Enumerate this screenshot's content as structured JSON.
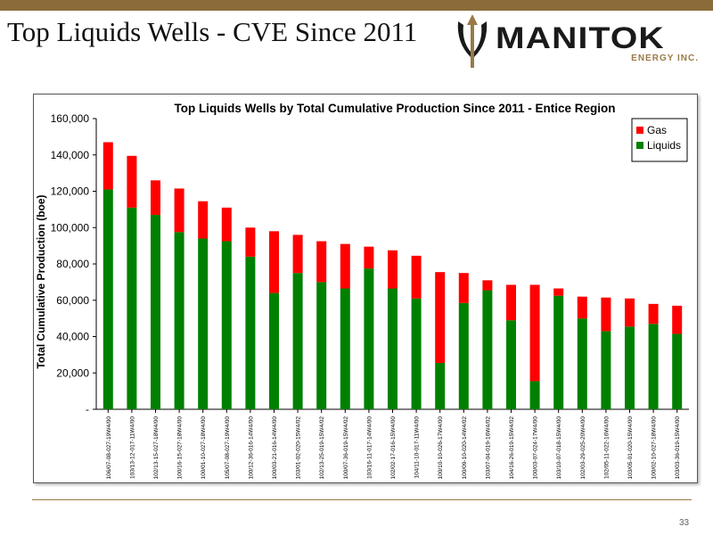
{
  "slide": {
    "title": "Top Liquids Wells - CVE Since 2011",
    "logo_text": "MANITOK",
    "logo_sub": "ENERGY INC.",
    "page_number": "33"
  },
  "colors": {
    "gas": "#FF0000",
    "liquids": "#008000",
    "accent": "#8B6B3A"
  },
  "chart_data": {
    "type": "bar",
    "stacked": true,
    "title": "Top Liquids Wells by Total Cumulative Production Since 2011 - Entice Region",
    "xlabel": "",
    "ylabel": "Total Cumulative Production (boe)",
    "ylim": [
      0,
      160000
    ],
    "yticks": [
      0,
      20000,
      40000,
      60000,
      80000,
      100000,
      120000,
      140000,
      160000
    ],
    "ytick_labels": [
      "-",
      "20,000",
      "40,000",
      "60,000",
      "80,000",
      "100,000",
      "120,000",
      "140,000",
      "160,000"
    ],
    "legend_position": "top-right",
    "categories": [
      "106/07-08-027-19W4/00",
      "103/13-12-017-11W4/00",
      "102/13-15-027-18W4/00",
      "100/16-15-027-18W4/00",
      "100/01-10-027-18W4/00",
      "105/07-08-027-19W4/00",
      "100/12-36-016-14W4/00",
      "100/03-21-016-14W4/00",
      "103/01-02-020-15W4/02",
      "102/13-25-019-15W4/02",
      "100/07-36-019-15W4/02",
      "103/16-11-017-14W4/00",
      "102/02-17-016-15W4/00",
      "104/11-10-017-11W4/00",
      "100/10-10-026-17W4/00",
      "100/09-10-020-14W4/02",
      "103/07-04-019-16W4/02",
      "104/16-26-019-15W4/02",
      "100/03-07-024-17W4/00",
      "103/10-07-018-15W4/00",
      "102/03-29-025-20W4/00",
      "102/05-11-022-16W4/00",
      "103/05-01-020-15W4/00",
      "100/02-10-027-18W4/00",
      "103/03-36-019-15W4/00"
    ],
    "series": [
      {
        "name": "Liquids",
        "values": [
          121000,
          111000,
          107000,
          97500,
          94000,
          92500,
          84000,
          64000,
          75000,
          70000,
          66500,
          77500,
          66500,
          61000,
          25500,
          58500,
          65500,
          49000,
          15500,
          62500,
          50000,
          43000,
          45500,
          47000,
          41500
        ]
      },
      {
        "name": "Gas",
        "values": [
          26000,
          28500,
          19000,
          24000,
          20500,
          18500,
          16000,
          34000,
          21000,
          22500,
          24500,
          12000,
          21000,
          23500,
          50000,
          16500,
          5500,
          19500,
          53000,
          4000,
          12000,
          18500,
          15500,
          11000,
          15500
        ]
      }
    ]
  }
}
